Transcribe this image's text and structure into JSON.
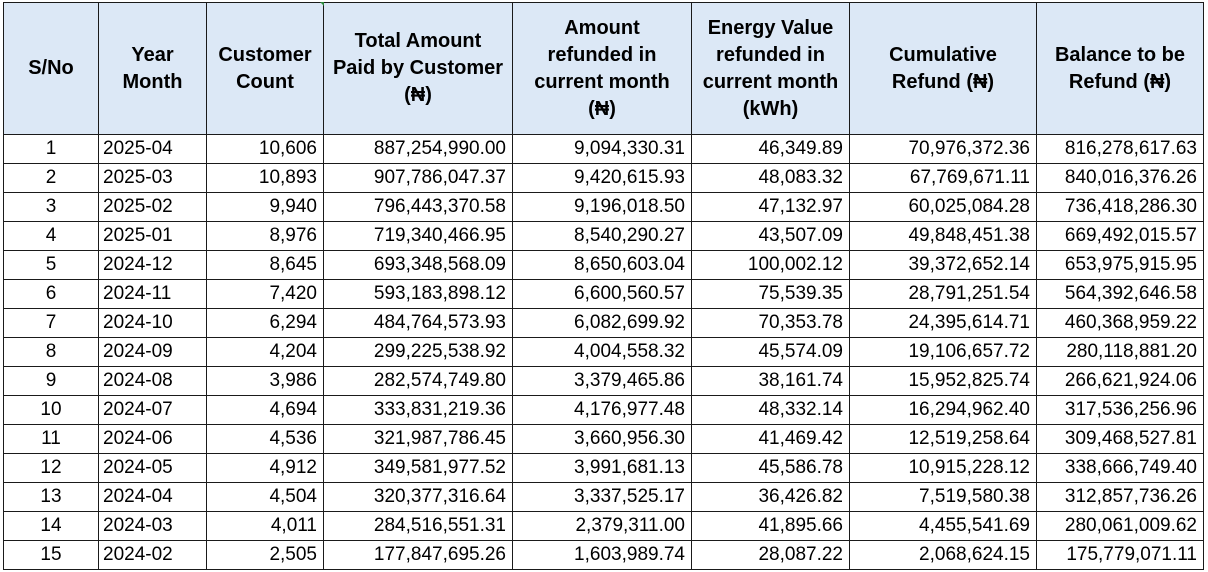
{
  "table": {
    "headers": [
      [
        "S/No"
      ],
      [
        "Year",
        "Month"
      ],
      [
        "Customer",
        "Count"
      ],
      [
        "Total Amount",
        "Paid by Customer",
        "(₦)"
      ],
      [
        "Amount",
        "refunded in",
        "current month",
        "(₦)"
      ],
      [
        "Energy Value",
        "refunded in",
        "current month",
        "(kWh)"
      ],
      [
        "Cumulative",
        "Refund (₦)"
      ],
      [
        "Balance to be",
        "Refund (₦)"
      ]
    ],
    "rows": [
      [
        "1",
        "2025-04",
        "10,606",
        "887,254,990.00",
        "9,094,330.31",
        "46,349.89",
        "70,976,372.36",
        "816,278,617.63"
      ],
      [
        "2",
        "2025-03",
        "10,893",
        "907,786,047.37",
        "9,420,615.93",
        "48,083.32",
        "67,769,671.11",
        "840,016,376.26"
      ],
      [
        "3",
        "2025-02",
        "9,940",
        "796,443,370.58",
        "9,196,018.50",
        "47,132.97",
        "60,025,084.28",
        "736,418,286.30"
      ],
      [
        "4",
        "2025-01",
        "8,976",
        "719,340,466.95",
        "8,540,290.27",
        "43,507.09",
        "49,848,451.38",
        "669,492,015.57"
      ],
      [
        "5",
        "2024-12",
        "8,645",
        "693,348,568.09",
        "8,650,603.04",
        "100,002.12",
        "39,372,652.14",
        "653,975,915.95"
      ],
      [
        "6",
        "2024-11",
        "7,420",
        "593,183,898.12",
        "6,600,560.57",
        "75,539.35",
        "28,791,251.54",
        "564,392,646.58"
      ],
      [
        "7",
        "2024-10",
        "6,294",
        "484,764,573.93",
        "6,082,699.92",
        "70,353.78",
        "24,395,614.71",
        "460,368,959.22"
      ],
      [
        "8",
        "2024-09",
        "4,204",
        "299,225,538.92",
        "4,004,558.32",
        "45,574.09",
        "19,106,657.72",
        "280,118,881.20"
      ],
      [
        "9",
        "2024-08",
        "3,986",
        "282,574,749.80",
        "3,379,465.86",
        "38,161.74",
        "15,952,825.74",
        "266,621,924.06"
      ],
      [
        "10",
        "2024-07",
        "4,694",
        "333,831,219.36",
        "4,176,977.48",
        "48,332.14",
        "16,294,962.40",
        "317,536,256.96"
      ],
      [
        "11",
        "2024-06",
        "4,536",
        "321,987,786.45",
        "3,660,956.30",
        "41,469.42",
        "12,519,258.64",
        "309,468,527.81"
      ],
      [
        "12",
        "2024-05",
        "4,912",
        "349,581,977.52",
        "3,991,681.13",
        "45,586.78",
        "10,915,228.12",
        "338,666,749.40"
      ],
      [
        "13",
        "2024-04",
        "4,504",
        "320,377,316.64",
        "3,337,525.17",
        "36,426.82",
        "7,519,580.38",
        "312,857,736.26"
      ],
      [
        "14",
        "2024-03",
        "4,011",
        "284,516,551.31",
        "2,379,311.00",
        "41,895.66",
        "4,455,541.69",
        "280,061,009.62"
      ],
      [
        "15",
        "2024-02",
        "2,505",
        "177,847,695.26",
        "1,603,989.74",
        "28,087.22",
        "2,068,624.15",
        "175,779,071.11"
      ]
    ]
  }
}
